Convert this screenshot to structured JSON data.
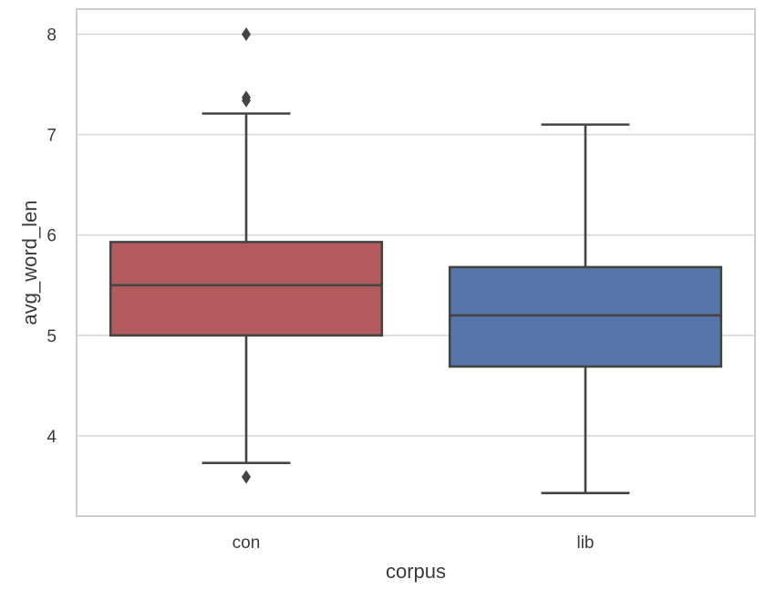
{
  "chart_data": {
    "type": "box",
    "title": "",
    "xlabel": "corpus",
    "ylabel": "avg_word_len",
    "categories": [
      "con",
      "lib"
    ],
    "ylim": [
      3.2,
      8.25
    ],
    "yticks": [
      4,
      5,
      6,
      7,
      8
    ],
    "grid": true,
    "legend": "none",
    "series": [
      {
        "category": "con",
        "color": "#b35b5e",
        "whisker_low": 3.73,
        "q1": 5.0,
        "median": 5.5,
        "q3": 5.93,
        "whisker_high": 7.21,
        "outliers": [
          8.0,
          7.37,
          7.34,
          3.59
        ]
      },
      {
        "category": "lib",
        "color": "#5675a8",
        "whisker_low": 3.43,
        "q1": 4.69,
        "median": 5.2,
        "q3": 5.68,
        "whisker_high": 7.1,
        "outliers": []
      }
    ],
    "colors": {
      "frame": "#cccccc",
      "grid": "#d8d8d8",
      "line": "#444444",
      "text": "#3b3b3b"
    }
  }
}
